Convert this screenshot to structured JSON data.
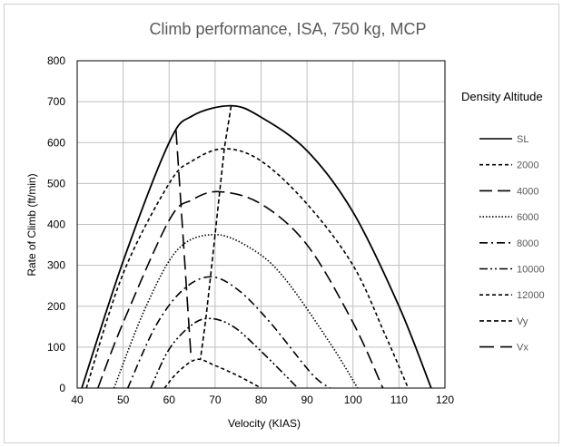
{
  "chart_data": {
    "type": "line",
    "title": "Climb performance, ISA, 750 kg, MCP",
    "xlabel": "Velocity (KIAS)",
    "ylabel": "Rate of Climb (ft/min)",
    "xlim": [
      40,
      120
    ],
    "ylim": [
      0,
      800
    ],
    "x_ticks": [
      "40",
      "50",
      "60",
      "70",
      "80",
      "90",
      "100",
      "110",
      "120"
    ],
    "y_ticks": [
      "0",
      "100",
      "200",
      "300",
      "400",
      "500",
      "600",
      "700",
      "800"
    ],
    "grid": true,
    "legend_title": "Density Altitude",
    "legend_position": "right",
    "series": [
      {
        "name": "SL",
        "dash": "solid",
        "points": [
          [
            41.0,
            0
          ],
          [
            50,
            310
          ],
          [
            60,
            600
          ],
          [
            65,
            665
          ],
          [
            73.5,
            690
          ],
          [
            80,
            662
          ],
          [
            90,
            580
          ],
          [
            100,
            430
          ],
          [
            110,
            200
          ],
          [
            117.0,
            0
          ]
        ]
      },
      {
        "name": "2000",
        "dash": "short",
        "points": [
          [
            42.0,
            0
          ],
          [
            50,
            280
          ],
          [
            60,
            500
          ],
          [
            65,
            555
          ],
          [
            72,
            585
          ],
          [
            80,
            555
          ],
          [
            90,
            450
          ],
          [
            100,
            300
          ],
          [
            107,
            130
          ],
          [
            112.0,
            0
          ]
        ]
      },
      {
        "name": "4000",
        "dash": "long",
        "points": [
          [
            44.5,
            0
          ],
          [
            50,
            160
          ],
          [
            60,
            410
          ],
          [
            65,
            460
          ],
          [
            71,
            480
          ],
          [
            80,
            450
          ],
          [
            90,
            350
          ],
          [
            100,
            160
          ],
          [
            106.5,
            0
          ]
        ]
      },
      {
        "name": "6000",
        "dash": "dot",
        "points": [
          [
            48.0,
            0
          ],
          [
            55,
            200
          ],
          [
            62,
            340
          ],
          [
            70,
            375
          ],
          [
            78,
            340
          ],
          [
            85,
            270
          ],
          [
            95,
            110
          ],
          [
            101.0,
            0
          ]
        ]
      },
      {
        "name": "8000",
        "dash": "dashdot",
        "points": [
          [
            51.0,
            0
          ],
          [
            57,
            150
          ],
          [
            63,
            240
          ],
          [
            69,
            272
          ],
          [
            75,
            240
          ],
          [
            82,
            160
          ],
          [
            91,
            35
          ],
          [
            95.0,
            0
          ]
        ]
      },
      {
        "name": "10000",
        "dash": "dashdotdot",
        "points": [
          [
            56.0,
            0
          ],
          [
            60,
            95
          ],
          [
            65,
            155
          ],
          [
            69,
            170
          ],
          [
            74,
            150
          ],
          [
            80,
            90
          ],
          [
            88,
            0
          ]
        ]
      },
      {
        "name": "12000",
        "dash": "short",
        "points": [
          [
            59.0,
            0
          ],
          [
            62,
            40
          ],
          [
            66,
            70
          ],
          [
            70,
            55
          ],
          [
            75,
            30
          ],
          [
            80,
            0
          ]
        ]
      },
      {
        "name": "Vy",
        "dash": "medium",
        "points": [
          [
            73.5,
            690
          ],
          [
            72,
            585
          ],
          [
            71,
            480
          ],
          [
            70,
            375
          ],
          [
            69,
            272
          ],
          [
            68,
            170
          ],
          [
            66.8,
            70
          ]
        ]
      },
      {
        "name": "Vx",
        "dash": "longdash",
        "points": [
          [
            61.5,
            630
          ],
          [
            64.8,
            70
          ]
        ]
      }
    ]
  }
}
